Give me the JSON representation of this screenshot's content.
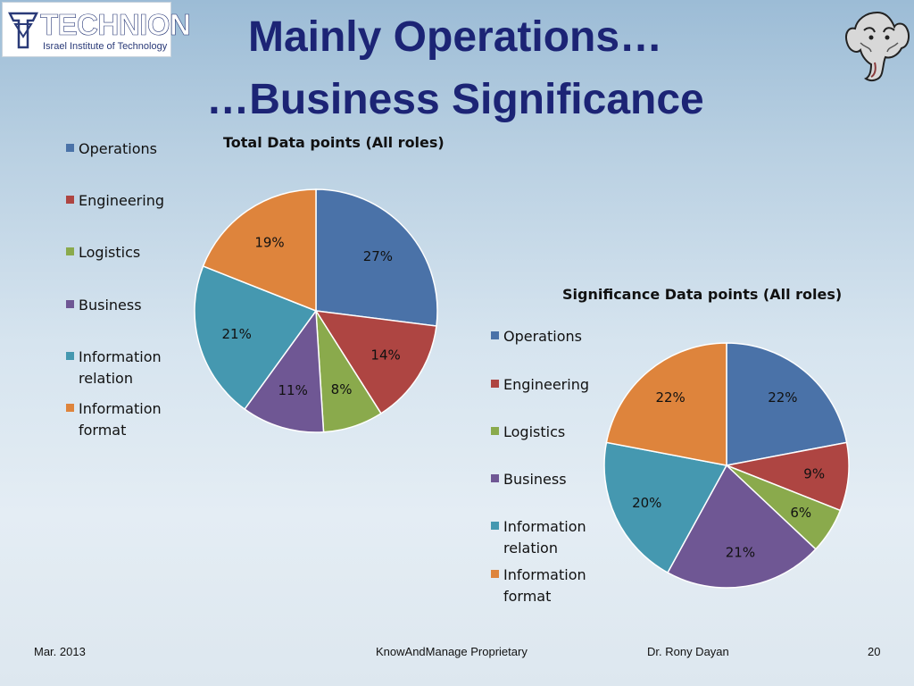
{
  "header": {
    "logo_name": "TECHNION",
    "logo_subtitle": "Israel Institute of Technology",
    "title_line1": "Mainly Operations…",
    "title_line2": "…Business Significance"
  },
  "colors": {
    "operations": "#4a72a8",
    "engineering": "#ae4542",
    "logistics": "#8aaa4c",
    "business": "#6f5794",
    "information_relation": "#4598b0",
    "information_format": "#de843c",
    "title": "#1c2475"
  },
  "legend_labels": [
    "Operations",
    "Engineering",
    "Logistics",
    "Business",
    "Information relation",
    "Information format"
  ],
  "chart_data": [
    {
      "type": "pie",
      "title": "Total Data points (All roles)",
      "categories": [
        "Operations",
        "Engineering",
        "Logistics",
        "Business",
        "Information relation",
        "Information format"
      ],
      "values": [
        27,
        14,
        8,
        11,
        21,
        19
      ],
      "labels": [
        "27%",
        "14%",
        "8%",
        "11%",
        "21%",
        "19%"
      ],
      "legend_position": "left"
    },
    {
      "type": "pie",
      "title": "Significance Data points (All roles)",
      "categories": [
        "Operations",
        "Engineering",
        "Logistics",
        "Business",
        "Information relation",
        "Information format"
      ],
      "values": [
        22,
        9,
        6,
        21,
        20,
        22
      ],
      "labels": [
        "22%",
        "9%",
        "6%",
        "21%",
        "20%",
        "22%"
      ],
      "legend_position": "left"
    }
  ],
  "footer": {
    "date": "Mar. 2013",
    "company": "KnowAndManage Proprietary",
    "author": "Dr. Rony Dayan",
    "page": "20"
  }
}
